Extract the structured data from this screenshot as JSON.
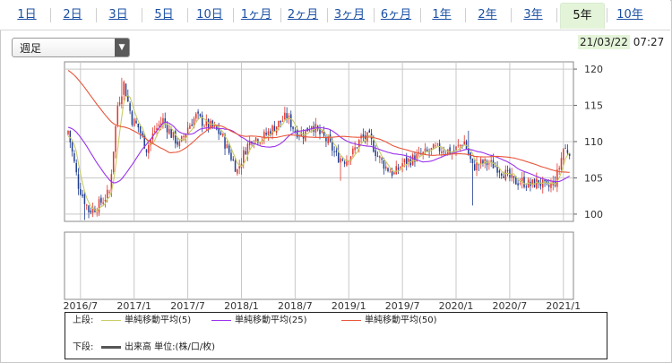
{
  "tabs": [
    {
      "label": "1日",
      "active": false
    },
    {
      "label": "2日",
      "active": false
    },
    {
      "label": "3日",
      "active": false
    },
    {
      "label": "5日",
      "active": false
    },
    {
      "label": "10日",
      "active": false
    },
    {
      "label": "1ヶ月",
      "active": false
    },
    {
      "label": "2ヶ月",
      "active": false
    },
    {
      "label": "3ヶ月",
      "active": false
    },
    {
      "label": "6ヶ月",
      "active": false
    },
    {
      "label": "1年",
      "active": false
    },
    {
      "label": "2年",
      "active": false
    },
    {
      "label": "3年",
      "active": false
    },
    {
      "label": "5年",
      "active": true
    },
    {
      "label": "10年",
      "active": false
    }
  ],
  "period_select": {
    "value": "週足"
  },
  "timestamp": {
    "date": "21/03/22",
    "time": "07:27"
  },
  "legend": {
    "upper_label": "上段:",
    "lower_label": "下段:",
    "items": [
      {
        "name": "単純移動平均(5)",
        "color": "#c8cc66"
      },
      {
        "name": "単純移動平均(25)",
        "color": "#9933ee"
      },
      {
        "name": "単純移動平均(50)",
        "color": "#e8553a"
      }
    ],
    "volume": {
      "name": "出来高 単位:(株/口/枚)",
      "color": "#555555"
    }
  },
  "colors": {
    "up": "#e0382c",
    "down": "#1f3c8f",
    "grid": "#c8c8c8"
  },
  "chart_data": {
    "type": "candlestick",
    "ylim": [
      99,
      121
    ],
    "yticks": [
      100,
      105,
      110,
      115,
      120
    ],
    "xtick_labels": [
      "2016/7",
      "2017/1",
      "2017/7",
      "2018/1",
      "2018/7",
      "2019/1",
      "2019/7",
      "2020/1",
      "2020/7",
      "2021/1"
    ],
    "xtick_positions": [
      6,
      32,
      58,
      84,
      110,
      136,
      162,
      188,
      214,
      240
    ],
    "anchors": [
      [
        0,
        111.5
      ],
      [
        5,
        104
      ],
      [
        10,
        100.5
      ],
      [
        14,
        101
      ],
      [
        20,
        103
      ],
      [
        24,
        115
      ],
      [
        27,
        118
      ],
      [
        31,
        113
      ],
      [
        34,
        112
      ],
      [
        38,
        109
      ],
      [
        42,
        111.5
      ],
      [
        46,
        113
      ],
      [
        50,
        111
      ],
      [
        54,
        109.5
      ],
      [
        58,
        112
      ],
      [
        62,
        113.5
      ],
      [
        66,
        112.5
      ],
      [
        70,
        112
      ],
      [
        74,
        111
      ],
      [
        78,
        108.5
      ],
      [
        82,
        106
      ],
      [
        86,
        109
      ],
      [
        89,
        110.5
      ],
      [
        94,
        110.5
      ],
      [
        98,
        111.5
      ],
      [
        102,
        112.5
      ],
      [
        106,
        113.5
      ],
      [
        110,
        111.5
      ],
      [
        114,
        111
      ],
      [
        118,
        112.5
      ],
      [
        122,
        111
      ],
      [
        126,
        110
      ],
      [
        130,
        108
      ],
      [
        134,
        107.5
      ],
      [
        138,
        108.5
      ],
      [
        142,
        110.5
      ],
      [
        146,
        110.5
      ],
      [
        150,
        108
      ],
      [
        154,
        106.5
      ],
      [
        158,
        105.5
      ],
      [
        162,
        107
      ],
      [
        166,
        107.5
      ],
      [
        170,
        108
      ],
      [
        174,
        108.5
      ],
      [
        178,
        109
      ],
      [
        182,
        109
      ],
      [
        186,
        108.5
      ],
      [
        190,
        109.5
      ],
      [
        192,
        110
      ],
      [
        196,
        106.5
      ],
      [
        200,
        107
      ],
      [
        204,
        107
      ],
      [
        208,
        106.5
      ],
      [
        212,
        105.5
      ],
      [
        216,
        104.5
      ],
      [
        220,
        104.5
      ],
      [
        224,
        104
      ],
      [
        228,
        104.5
      ],
      [
        232,
        103.5
      ],
      [
        234,
        104
      ],
      [
        236,
        104.5
      ],
      [
        238,
        106.5
      ],
      [
        240,
        109
      ],
      [
        242,
        108.8
      ]
    ],
    "series": [
      {
        "name": "単純移動平均(5)",
        "window": 5
      },
      {
        "name": "単純移動平均(25)",
        "window": 25
      },
      {
        "name": "単純移動平均(50)",
        "window": 50
      }
    ]
  }
}
